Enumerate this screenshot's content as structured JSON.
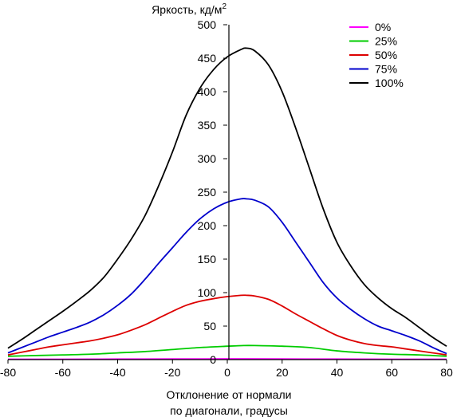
{
  "chart_data": {
    "type": "line",
    "title": "",
    "ylabel_main": "Яркость, кд/м",
    "ylabel_sup": "2",
    "xlabel_line1": "Отклонение от нормали",
    "xlabel_line2": "по диагонали, градусы",
    "xlim": [
      -80,
      80
    ],
    "ylim": [
      0,
      500
    ],
    "xticks": [
      -80,
      -60,
      -40,
      -20,
      0,
      20,
      40,
      60,
      80
    ],
    "yticks": [
      0,
      50,
      100,
      150,
      200,
      250,
      300,
      350,
      400,
      450,
      500
    ],
    "grid": false,
    "legend_position": "top-right",
    "series": [
      {
        "name": "0%",
        "color": "#ff00ff",
        "x": [
          -80,
          -60,
          -40,
          -20,
          0,
          6,
          20,
          40,
          60,
          80
        ],
        "y": [
          0.5,
          0.6,
          0.8,
          1.0,
          1.1,
          1.1,
          1.0,
          0.8,
          0.6,
          0.5
        ]
      },
      {
        "name": "25%",
        "color": "#00cc00",
        "x": [
          -80,
          -70,
          -60,
          -50,
          -40,
          -30,
          -20,
          -10,
          0,
          6,
          10,
          20,
          30,
          40,
          50,
          60,
          70,
          80
        ],
        "y": [
          5,
          6,
          7,
          8,
          10,
          12,
          15,
          18,
          20,
          21,
          21,
          20,
          18,
          13,
          10,
          8,
          7,
          5
        ]
      },
      {
        "name": "50%",
        "color": "#dd0000",
        "x": [
          -80,
          -75,
          -70,
          -65,
          -60,
          -55,
          -50,
          -45,
          -40,
          -35,
          -30,
          -25,
          -20,
          -15,
          -10,
          -5,
          0,
          5,
          7,
          10,
          15,
          20,
          25,
          30,
          35,
          40,
          45,
          50,
          55,
          60,
          65,
          70,
          75,
          80
        ],
        "y": [
          7,
          11,
          15,
          19,
          22,
          25,
          28,
          32,
          37,
          44,
          52,
          62,
          72,
          81,
          87,
          91,
          94,
          96,
          96,
          95,
          90,
          80,
          68,
          57,
          46,
          36,
          29,
          24,
          21,
          19,
          16,
          13,
          10,
          7
        ]
      },
      {
        "name": "75%",
        "color": "#0000cc",
        "x": [
          -80,
          -75,
          -70,
          -65,
          -60,
          -55,
          -50,
          -45,
          -40,
          -35,
          -30,
          -25,
          -20,
          -15,
          -10,
          -5,
          0,
          5,
          7,
          10,
          15,
          20,
          25,
          30,
          35,
          40,
          45,
          50,
          55,
          60,
          65,
          70,
          75,
          80
        ],
        "y": [
          10,
          18,
          26,
          34,
          41,
          48,
          56,
          67,
          81,
          98,
          120,
          144,
          167,
          190,
          210,
          225,
          235,
          240,
          240,
          238,
          228,
          205,
          175,
          145,
          115,
          92,
          75,
          61,
          50,
          43,
          36,
          28,
          18,
          9
        ]
      },
      {
        "name": "100%",
        "color": "#000000",
        "x": [
          -80,
          -75,
          -70,
          -65,
          -60,
          -55,
          -50,
          -45,
          -40,
          -35,
          -30,
          -25,
          -20,
          -15,
          -10,
          -5,
          0,
          5,
          7,
          10,
          15,
          20,
          25,
          30,
          35,
          40,
          45,
          50,
          55,
          60,
          65,
          70,
          75,
          80
        ],
        "y": [
          17,
          30,
          44,
          58,
          72,
          87,
          103,
          123,
          150,
          180,
          215,
          260,
          310,
          365,
          405,
          433,
          452,
          463,
          465,
          461,
          440,
          400,
          345,
          285,
          225,
          175,
          140,
          112,
          92,
          76,
          63,
          48,
          33,
          20
        ]
      }
    ]
  }
}
